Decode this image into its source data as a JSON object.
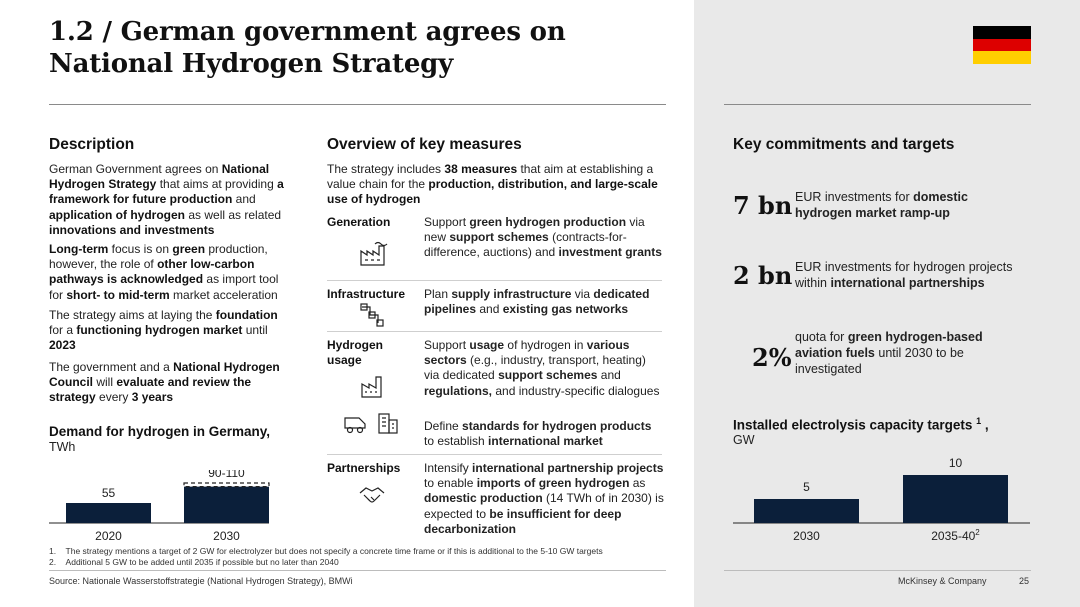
{
  "title_line1": "1.2 / German government agrees on",
  "title_line2": "National Hydrogen Strategy",
  "flag": {
    "colors": [
      "#000000",
      "#dd0000",
      "#ffce00"
    ]
  },
  "description": {
    "heading": "Description",
    "p1": {
      "a": "German Government agrees on ",
      "b": "National Hydrogen Strategy",
      "c": " that aims at providing ",
      "d": "a framework for future production",
      "e": " and ",
      "f": "application of hydrogen",
      "g": " as well as related ",
      "h": "innovations and investments"
    },
    "p2": {
      "a": "Long-term",
      "b": " focus is on ",
      "c": "green",
      "d": " production, however, the role of ",
      "e": "other low-carbon pathways is acknowledged",
      "f": " as import tool for ",
      "g": "short- to mid-term",
      "h": " market acceleration"
    },
    "p3": {
      "a": "The strategy aims at laying the ",
      "b": "foundation",
      "c": " for a ",
      "d": "functioning hydrogen market",
      "e": " until ",
      "f": "2023"
    },
    "p4": {
      "a": "The government and a ",
      "b": "National Hydrogen Council",
      "c": " will ",
      "d": "evaluate and review the strategy",
      "e": " every ",
      "f": "3 years"
    }
  },
  "demand": {
    "heading": "Demand for hydrogen in Germany,",
    "unit": "TWh",
    "bars": [
      {
        "category": "2020",
        "value": 55,
        "label": "55"
      },
      {
        "category": "2030",
        "value": 100,
        "label": "90-110"
      }
    ]
  },
  "overview": {
    "heading": "Overview of key measures",
    "intro": {
      "a": "The strategy includes ",
      "b": "38 measures",
      "c": " that aim at establishing a value chain for the ",
      "d": "production, distribution, and large-scale use of hydrogen"
    },
    "rows": [
      {
        "label": "Generation",
        "icon": "factory-wind-icon",
        "text": {
          "a": "Support ",
          "b": "green hydrogen production",
          "c": " via new ",
          "d": "support schemes",
          "e": " (contracts-for-difference, auctions) and ",
          "f": "investment grants"
        }
      },
      {
        "label": "Infrastructure",
        "icon": "pipeline-icon",
        "text": {
          "a": "Plan ",
          "b": "supply infrastructure",
          "c": " via ",
          "d": "dedicated pipelines",
          "e": " and ",
          "f": "existing gas networks"
        }
      },
      {
        "label": "Hydrogen usage",
        "icon": "industry-icon",
        "text": {
          "a": "Support ",
          "b": "usage",
          "c": " of hydrogen in ",
          "d": "various sectors",
          "e": " (e.g., industry, transport, heating) via dedicated ",
          "f": "support schemes",
          "g": " and ",
          "h": "regulations,",
          "i": " and industry-specific dialogues"
        }
      },
      {
        "label": "",
        "icon": "truck-building-icon",
        "text": {
          "a": "Define ",
          "b": "standards for hydrogen products",
          "c": " to establish ",
          "d": "international market"
        }
      },
      {
        "label": "Partnerships",
        "icon": "handshake-icon",
        "text": {
          "a": "Intensify ",
          "b": "international partnership projects",
          "c": " to enable ",
          "d": "imports of green hydrogen",
          "e": " as ",
          "f": "domestic production",
          "g": " (14 TWh of in 2030) is expected to ",
          "h": "be insufficient for deep decarbonization"
        }
      }
    ]
  },
  "commitments": {
    "heading": "Key commitments and targets",
    "items": [
      {
        "big": "7 bn",
        "a": "EUR investments for ",
        "b": "domestic hydrogen market ramp-up"
      },
      {
        "big": "2 bn",
        "a": "EUR investments for hydrogen projects within ",
        "b": "international partnerships"
      },
      {
        "big": "2%",
        "a": "quota for ",
        "b": "green hydrogen-based aviation fuels",
        "c": " until 2030 to be investigated"
      }
    ]
  },
  "electrolysis": {
    "heading": "Installed electrolysis capacity targets",
    "heading_sup": "1",
    "heading_tail": " ,",
    "unit": "GW",
    "bars": [
      {
        "category": "2030",
        "value": 5,
        "label": "5"
      },
      {
        "category": "2035-40",
        "category_sup": "2",
        "value": 10,
        "label": "10"
      }
    ]
  },
  "chart_data": [
    {
      "type": "bar",
      "title": "Demand for hydrogen in Germany, TWh",
      "categories": [
        "2020",
        "2030"
      ],
      "values": [
        55,
        100
      ],
      "value_labels": [
        "55",
        "90-110"
      ]
    },
    {
      "type": "bar",
      "title": "Installed electrolysis capacity targets, GW",
      "categories": [
        "2030",
        "2035-40"
      ],
      "values": [
        5,
        10
      ],
      "value_labels": [
        "5",
        "10"
      ]
    }
  ],
  "footnotes": [
    {
      "num": "1.",
      "text": "The strategy mentions a target of 2 GW for electrolyzer but does not specify a concrete time frame or if this is additional to the 5-10 GW targets"
    },
    {
      "num": "2.",
      "text": "Additional 5 GW to be added until 2035 if possible but no later than 2040"
    }
  ],
  "source": "Source: Nationale Wasserstoffstrategie (National Hydrogen Strategy), BMWi",
  "brand": "McKinsey & Company",
  "page_number": "25"
}
